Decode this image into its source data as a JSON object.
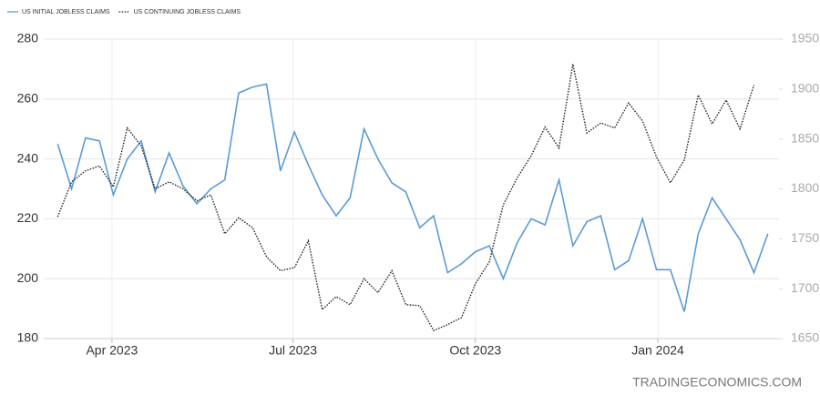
{
  "chart_data": {
    "type": "line",
    "watermark": "TRADINGECONOMICS.COM",
    "x": [
      0,
      1,
      2,
      3,
      4,
      5,
      6,
      7,
      8,
      9,
      10,
      11,
      12,
      13,
      14,
      15,
      16,
      17,
      18,
      19,
      20,
      21,
      22,
      23,
      24,
      25,
      26,
      27,
      28,
      29,
      30,
      31,
      32,
      33,
      34,
      35,
      36,
      37,
      38,
      39,
      40,
      41,
      42,
      43,
      44,
      45,
      46,
      47,
      48,
      49,
      50,
      51
    ],
    "xlim": [
      -1,
      51.8
    ],
    "xticks": [
      {
        "value": 3.9,
        "label": "Apr 2023"
      },
      {
        "value": 16.9,
        "label": "Jul 2023"
      },
      {
        "value": 30,
        "label": "Oct 2023"
      },
      {
        "value": 43.1,
        "label": "Jan 2024"
      }
    ],
    "ylim": [
      180,
      280
    ],
    "yticks": [
      180,
      200,
      220,
      240,
      260,
      280
    ],
    "y2lim": [
      1650,
      1950
    ],
    "y2ticks": [
      1650,
      1700,
      1750,
      1800,
      1850,
      1900,
      1950
    ],
    "grid": true,
    "series": [
      {
        "name": "US INITIAL JOBLESS CLAIMS",
        "color": "#5b9bd5",
        "style": "solid",
        "values": [
          245,
          230,
          247,
          246,
          228,
          240,
          246,
          229,
          242,
          231,
          225,
          230,
          233,
          262,
          264,
          265,
          236,
          249,
          238,
          228,
          221,
          227,
          250,
          240,
          232,
          229,
          217,
          221,
          202,
          205,
          209,
          211,
          200,
          212,
          220,
          218,
          233,
          211,
          219,
          221,
          203,
          206,
          220,
          203,
          203,
          189,
          215,
          227,
          220,
          213,
          202,
          215
        ]
      },
      {
        "name": "US CONTINUING JOBLESS CLAIMS",
        "color": "#222222",
        "style": "dotted",
        "axis": "y2",
        "values": [
          1772,
          1807,
          1818,
          1823,
          1802,
          1861,
          1843,
          1800,
          1807,
          1800,
          1788,
          1794,
          1755,
          1771,
          1761,
          1732,
          1718,
          1721,
          1748,
          1679,
          1692,
          1684,
          1710,
          1696,
          1718,
          1684,
          1683,
          1658,
          1664,
          1671,
          1705,
          1727,
          1784,
          1811,
          1833,
          1862,
          1841,
          1925,
          1856,
          1866,
          1861,
          1886,
          1868,
          1832,
          1806,
          1829,
          1894,
          1865,
          1889,
          1860,
          1904,
          null
        ]
      }
    ]
  }
}
